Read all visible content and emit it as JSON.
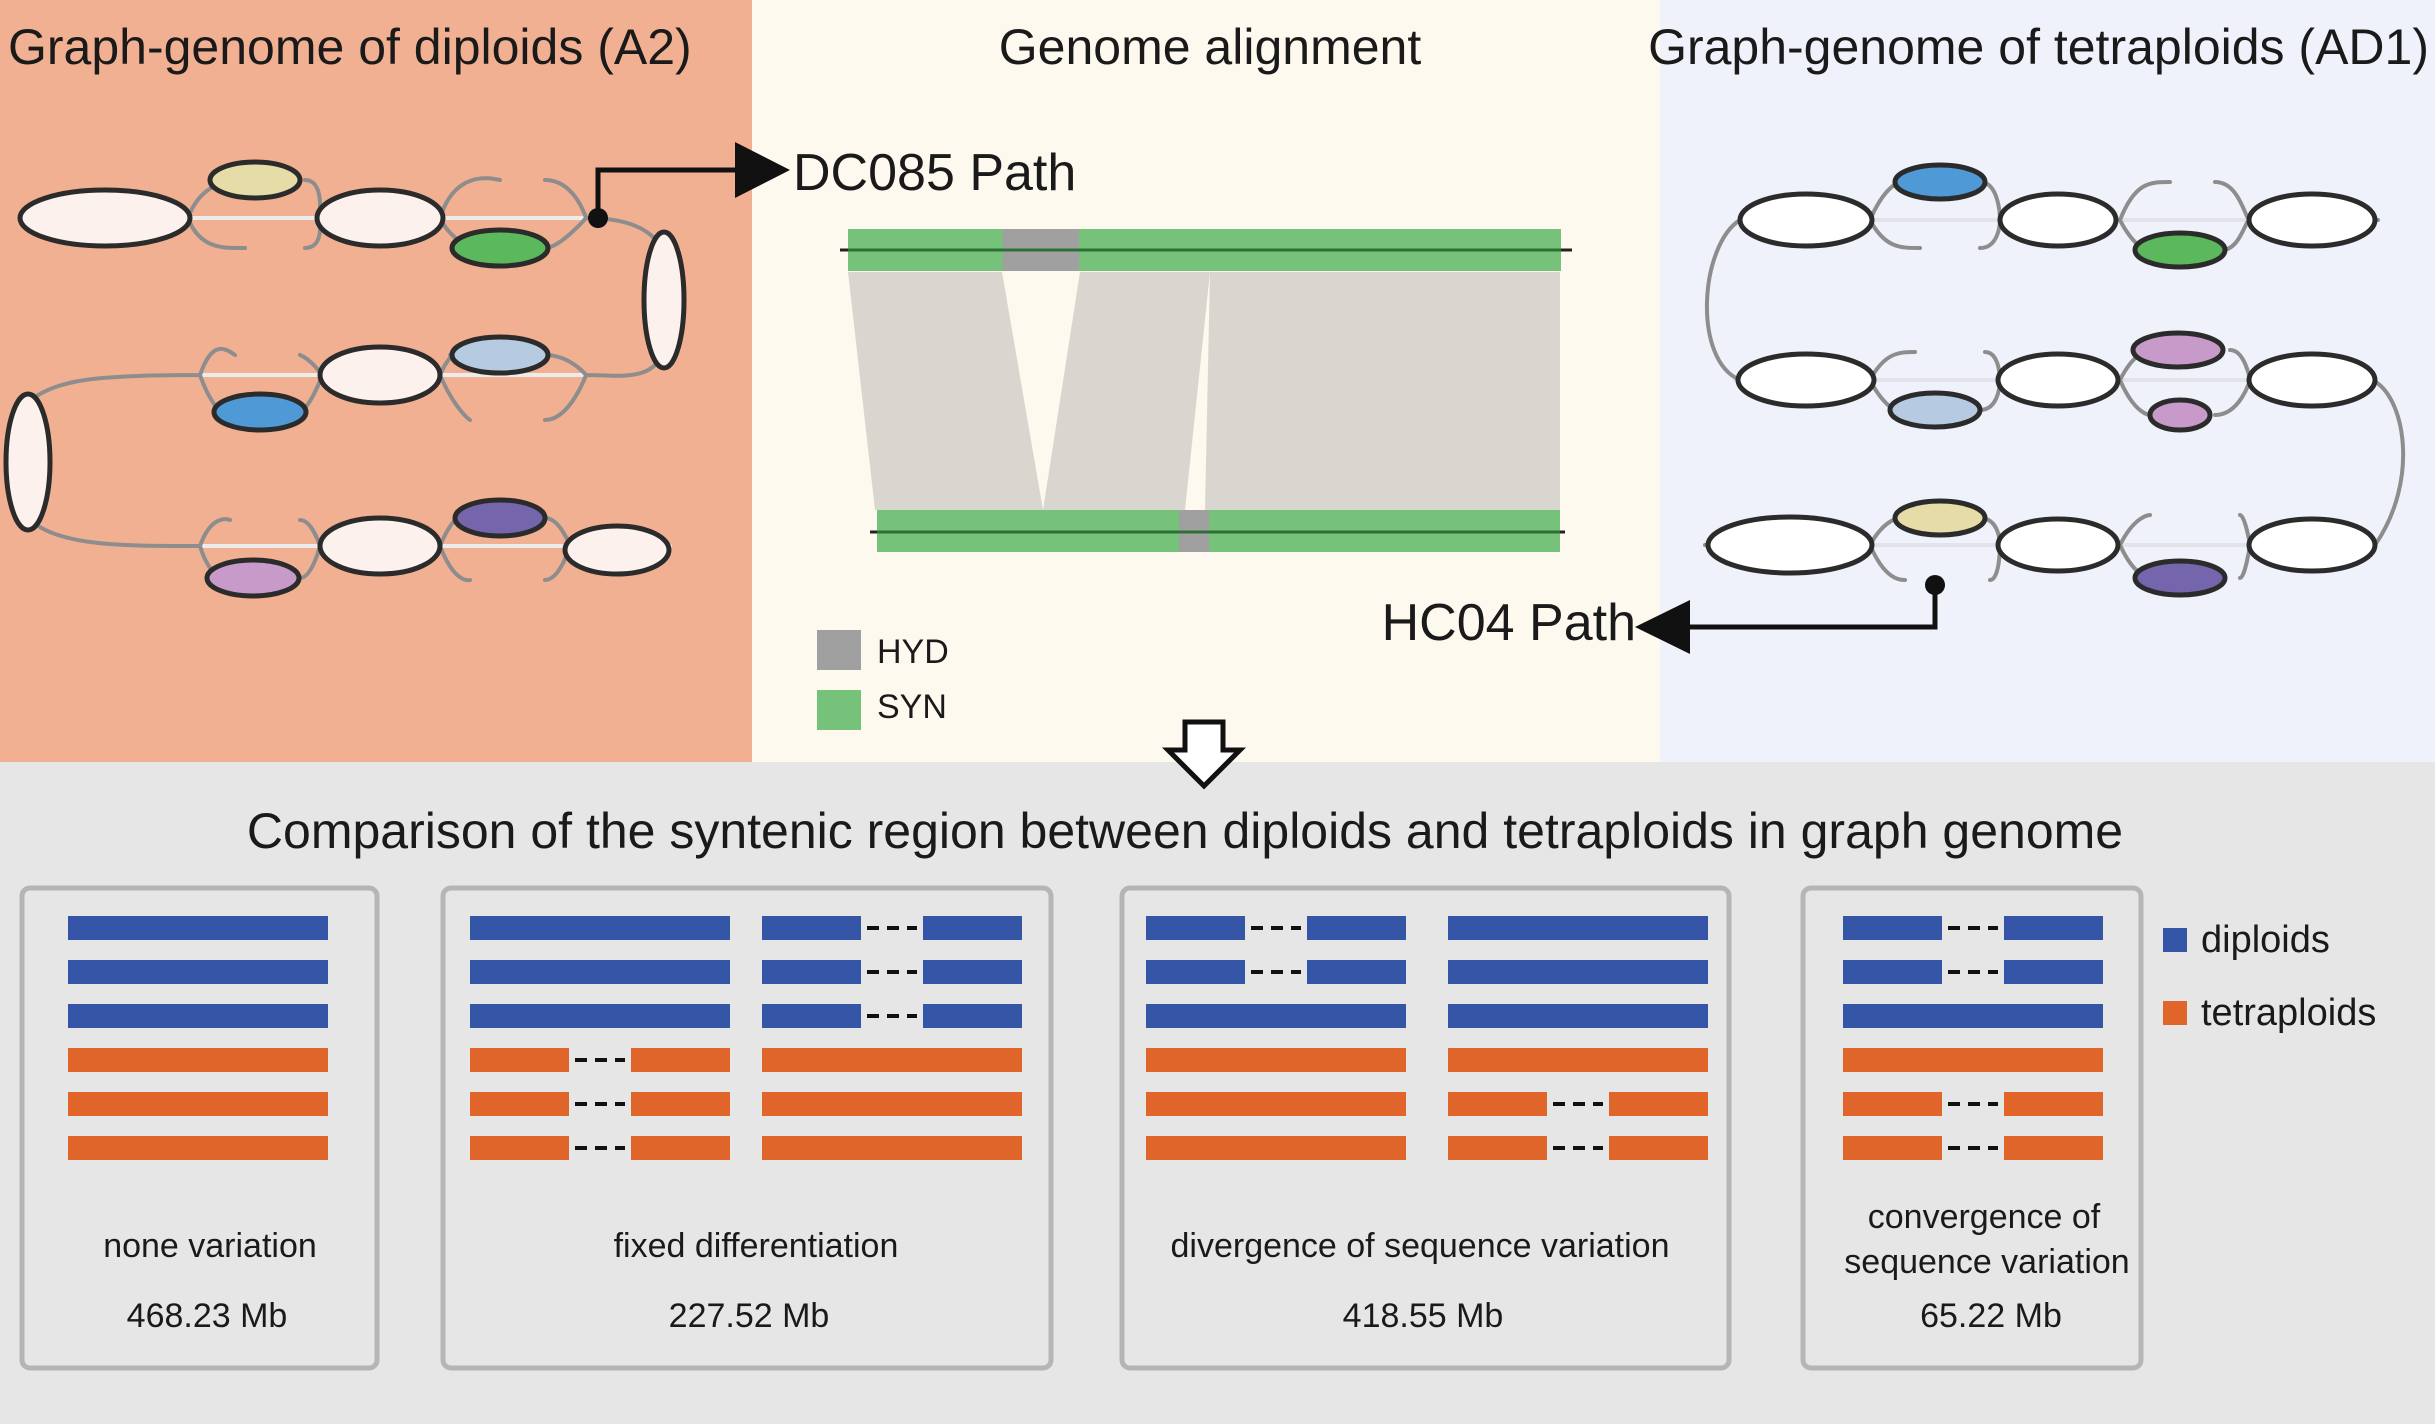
{
  "colors": {
    "diploid_panel_bg": "#f2b092",
    "alignment_panel_bg": "#fdf9ee",
    "tetraploid_panel_bg": "#eff2fa",
    "bottom_panel_bg": "#e6e6e6",
    "syn_green": "#77c27a",
    "hyd_gray": "#a0a0a0",
    "ribbon": "#d9d6d0",
    "node_fill": "#fdf1ed",
    "node_yellow": "#e6dca8",
    "node_green": "#5cb85c",
    "node_blue_light": "#b6cbe2",
    "node_blue": "#4f9ad6",
    "node_purple_dark": "#7565ac",
    "node_purple_light": "#c79ac9",
    "diploid_blue": "#3555a6",
    "tetraploid_orange": "#e0652a"
  },
  "panels": {
    "diploids": {
      "title": "Graph-genome of diploids (A2)",
      "path_label": "DC085 Path"
    },
    "alignment": {
      "title": "Genome alignment",
      "legend": [
        {
          "key": "hyd",
          "label": "HYD",
          "color": "#a0a0a0"
        },
        {
          "key": "syn",
          "label": "SYN",
          "color": "#77c27a"
        }
      ]
    },
    "tetraploids": {
      "title": "Graph-genome of tetraploids (AD1)",
      "path_label": "HC04 Path"
    }
  },
  "comparison": {
    "title": "Comparison of the syntenic region between diploids and tetraploids in graph genome",
    "boxes": [
      {
        "label_lines": [
          "none variation"
        ],
        "value": "468.23 Mb"
      },
      {
        "label_lines": [
          "fixed differentiation"
        ],
        "value": "227.52 Mb"
      },
      {
        "label_lines": [
          "divergence of sequence variation"
        ],
        "value": "418.55 Mb"
      },
      {
        "label_lines": [
          "convergence of",
          "sequence variation"
        ],
        "value": "65.22 Mb"
      }
    ],
    "legend": [
      {
        "label": "diploids",
        "color": "#3555a6"
      },
      {
        "label": "tetraploids",
        "color": "#e0652a"
      }
    ]
  }
}
